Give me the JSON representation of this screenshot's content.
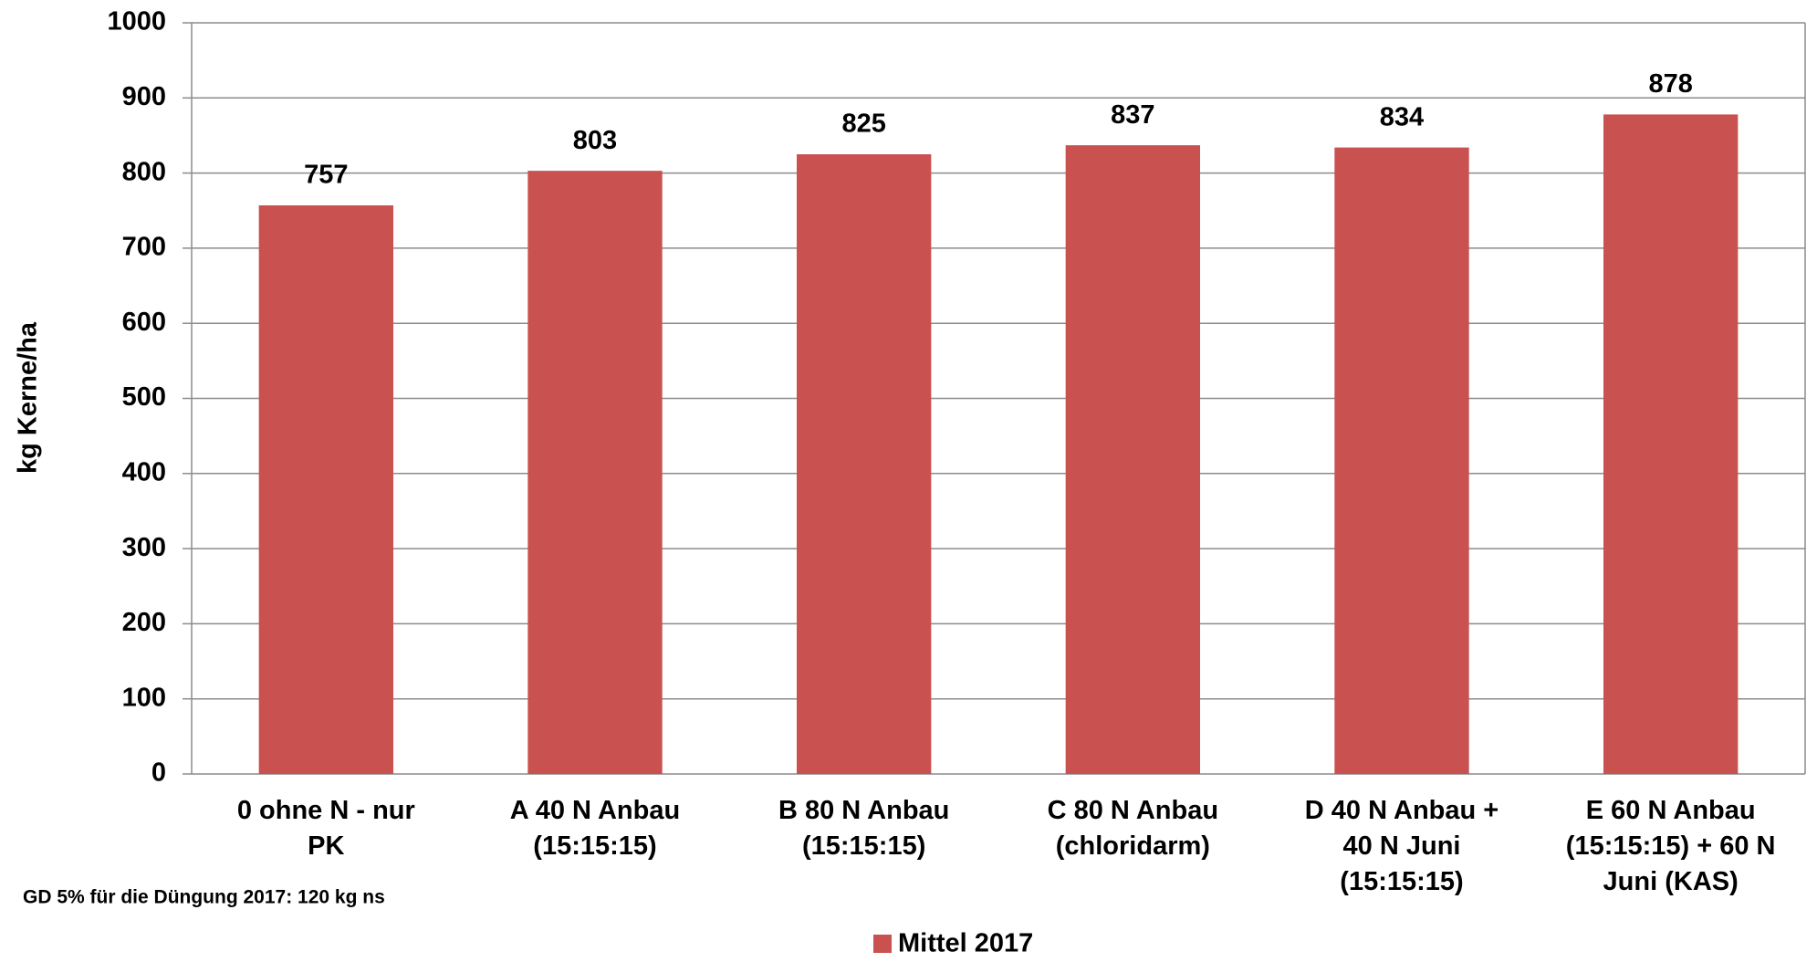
{
  "chart_data": {
    "type": "bar",
    "y_label": "kg Kerne/ha",
    "note": "GD 5% für die Düngung 2017: 120 kg ns",
    "categories": [
      "0 ohne N - nur\nPK",
      "A 40 N Anbau\n(15:15:15)",
      "B 80 N Anbau\n(15:15:15)",
      "C 80 N Anbau\n(chloridarm)",
      "D 40 N Anbau +\n40 N Juni\n(15:15:15)",
      "E 60 N Anbau\n(15:15:15) + 60 N\nJuni (KAS)"
    ],
    "series": [
      {
        "name": "Mittel 2017",
        "color": "#c9514f",
        "values": [
          757,
          803,
          825,
          837,
          834,
          878
        ]
      }
    ],
    "ylim": [
      0,
      1000
    ],
    "yticks": [
      0,
      100,
      200,
      300,
      400,
      500,
      600,
      700,
      800,
      900,
      1000
    ],
    "grid": true,
    "legend": "bottom"
  }
}
